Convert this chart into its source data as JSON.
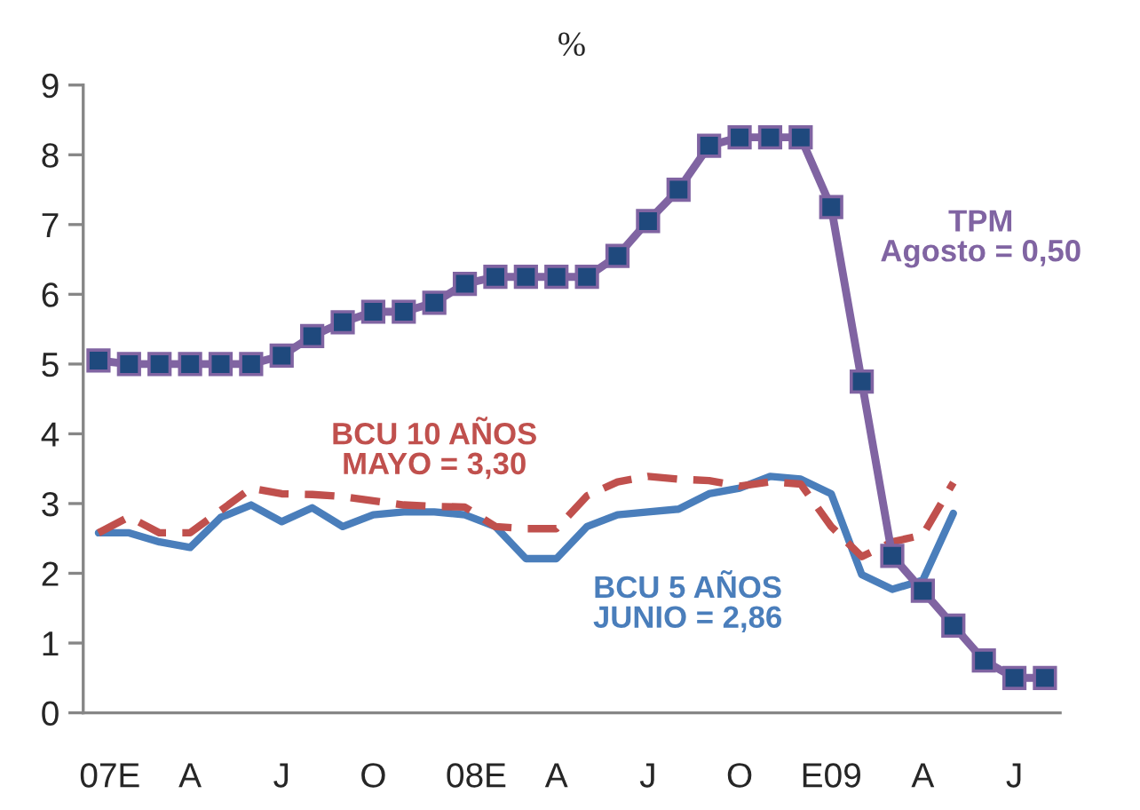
{
  "chart_data": {
    "type": "line",
    "title": "%",
    "categories": [
      "07",
      "E",
      null,
      "A",
      null,
      null,
      "J",
      null,
      null,
      "O",
      null,
      null,
      "08",
      "E",
      null,
      "A",
      null,
      null,
      "J",
      null,
      null,
      "O",
      null,
      null,
      "E09",
      null,
      null,
      "A",
      null,
      null,
      "J",
      null
    ],
    "ylim": [
      0,
      9
    ],
    "yticks": [
      0,
      1,
      2,
      3,
      4,
      5,
      6,
      7,
      8,
      9
    ],
    "grid": false,
    "legend": false,
    "series": [
      {
        "name": "TPM\nAgosto = 0,50",
        "color": "#8064a2",
        "marker": "square",
        "line_style": "solid",
        "colors": [
          "#1f497d",
          "#1f497d",
          "#1f497d",
          "#1f497d",
          "#1f497d",
          "#1f497d",
          "#1f497d",
          "#1f497d",
          "#1f497d",
          "#1f497d",
          "#1f497d",
          "#1f497d",
          "#1f497d",
          "#1f497d",
          "#1f497d",
          "#1f497d",
          "#1f497d",
          "#1f497d",
          "#1f497d",
          "#1f497d",
          "#1f497d",
          "#1f497d",
          "#1f497d",
          "#1f497d",
          "#1f497d",
          "#1f497d",
          "#1f497d",
          "#1f497d",
          "#1f497d",
          "#1f497d",
          "#1f497d",
          "#1f497d"
        ],
        "values": [
          5.05,
          5.0,
          5.0,
          5.0,
          5.0,
          5.0,
          5.12,
          5.4,
          5.6,
          5.75,
          5.75,
          5.88,
          6.15,
          6.25,
          6.25,
          6.25,
          6.25,
          6.55,
          7.05,
          7.5,
          8.13,
          8.25,
          8.25,
          8.25,
          7.25,
          4.75,
          2.25,
          1.75,
          1.25,
          0.75,
          0.5,
          0.5
        ]
      },
      {
        "name": "BCU 10 AÑOS\nMAYO = 3,30",
        "color": "#c0504d",
        "marker": "none",
        "line_style": "dashed",
        "values": [
          2.58,
          2.81,
          2.58,
          2.58,
          2.9,
          3.22,
          3.14,
          3.13,
          3.1,
          3.04,
          2.98,
          2.96,
          2.95,
          2.67,
          2.64,
          2.64,
          3.11,
          3.31,
          3.39,
          3.35,
          3.33,
          3.25,
          3.31,
          3.28,
          2.67,
          2.24,
          2.45,
          2.55,
          3.3,
          null,
          null,
          null
        ]
      },
      {
        "name": "BCU 5 AÑOS\nJUNIO = 2,86",
        "color": "#4a7ebb",
        "marker": "none",
        "line_style": "solid",
        "values": [
          2.58,
          2.58,
          2.45,
          2.37,
          2.8,
          2.98,
          2.74,
          2.94,
          2.67,
          2.84,
          2.88,
          2.88,
          2.84,
          2.67,
          2.21,
          2.21,
          2.67,
          2.84,
          2.88,
          2.92,
          3.14,
          3.22,
          3.39,
          3.35,
          3.14,
          1.98,
          1.77,
          1.9,
          2.86,
          null,
          null,
          null
        ]
      }
    ]
  }
}
